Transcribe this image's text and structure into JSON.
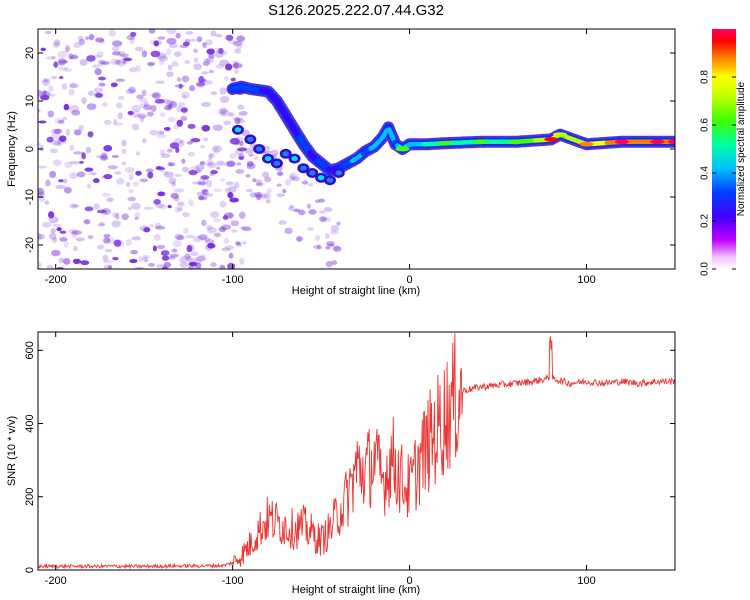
{
  "title": "S126.2025.222.07.44.G32",
  "chart_data": [
    {
      "type": "heatmap",
      "name": "spectrogram",
      "xlabel": "Height of straight line (km)",
      "ylabel": "Frequency (Hz)",
      "xlim": [
        -210,
        150
      ],
      "ylim": [
        -25,
        25
      ],
      "xticks": [
        -200,
        -100,
        0,
        100
      ],
      "yticks": [
        -20,
        -10,
        0,
        10,
        20
      ],
      "colorbar": {
        "label": "Normalized spectral amplitude",
        "range": [
          0,
          1
        ],
        "ticks": [
          0.0,
          0.2,
          0.4,
          0.6,
          0.8
        ]
      },
      "ridge": [
        {
          "x": -100,
          "f": 12.5,
          "amp": 0.35
        },
        {
          "x": -95,
          "f": 13.0,
          "amp": 0.4
        },
        {
          "x": -90,
          "f": 12.5,
          "amp": 0.35
        },
        {
          "x": -80,
          "f": 12.0,
          "amp": 0.3
        },
        {
          "x": -75,
          "f": 10.0,
          "amp": 0.25
        },
        {
          "x": -70,
          "f": 7.0,
          "amp": 0.3
        },
        {
          "x": -65,
          "f": 4.0,
          "amp": 0.3
        },
        {
          "x": -60,
          "f": 1.0,
          "amp": 0.35
        },
        {
          "x": -55,
          "f": -1.5,
          "amp": 0.3
        },
        {
          "x": -50,
          "f": -3.0,
          "amp": 0.35
        },
        {
          "x": -45,
          "f": -4.5,
          "amp": 0.3
        },
        {
          "x": -40,
          "f": -4.0,
          "amp": 0.3
        },
        {
          "x": -35,
          "f": -3.0,
          "amp": 0.4
        },
        {
          "x": -30,
          "f": -2.0,
          "amp": 0.45
        },
        {
          "x": -25,
          "f": -0.5,
          "amp": 0.4
        },
        {
          "x": -20,
          "f": 0.5,
          "amp": 0.45
        },
        {
          "x": -15,
          "f": 2.5,
          "amp": 0.5
        },
        {
          "x": -12,
          "f": 4.5,
          "amp": 0.45
        },
        {
          "x": -8,
          "f": 1.0,
          "amp": 0.4
        },
        {
          "x": -4,
          "f": 0.0,
          "amp": 0.6
        },
        {
          "x": 0,
          "f": 1.0,
          "amp": 0.45
        },
        {
          "x": 10,
          "f": 1.0,
          "amp": 0.55
        },
        {
          "x": 20,
          "f": 1.2,
          "amp": 0.6
        },
        {
          "x": 40,
          "f": 1.5,
          "amp": 0.6
        },
        {
          "x": 60,
          "f": 1.5,
          "amp": 0.6
        },
        {
          "x": 80,
          "f": 2.0,
          "amp": 0.85
        },
        {
          "x": 85,
          "f": 3.0,
          "amp": 0.7
        },
        {
          "x": 100,
          "f": 1.0,
          "amp": 0.8
        },
        {
          "x": 120,
          "f": 1.5,
          "amp": 0.95
        },
        {
          "x": 140,
          "f": 1.5,
          "amp": 0.9
        },
        {
          "x": 150,
          "f": 1.5,
          "amp": 0.9
        }
      ]
    },
    {
      "type": "line",
      "name": "snr",
      "xlabel": "Height of straight line (km)",
      "ylabel": "SNR (10 * v/v)",
      "xlim": [
        -210,
        150
      ],
      "ylim": [
        0,
        650
      ],
      "xticks": [
        -200,
        -100,
        0,
        100
      ],
      "yticks": [
        0,
        200,
        400,
        600
      ],
      "color": "#ee3333",
      "series": [
        {
          "name": "SNR",
          "x": [
            -210,
            -150,
            -105,
            -100,
            -95,
            -90,
            -85,
            -80,
            -75,
            -70,
            -65,
            -60,
            -55,
            -50,
            -45,
            -40,
            -35,
            -30,
            -25,
            -20,
            -15,
            -10,
            -5,
            0,
            5,
            10,
            15,
            20,
            25,
            30,
            40,
            50,
            60,
            70,
            80,
            90,
            100,
            110,
            120,
            130,
            140,
            150
          ],
          "y": [
            10,
            10,
            12,
            20,
            40,
            70,
            110,
            140,
            130,
            120,
            110,
            120,
            100,
            80,
            110,
            160,
            200,
            280,
            270,
            300,
            240,
            310,
            250,
            220,
            290,
            340,
            380,
            420,
            460,
            490,
            500,
            505,
            510,
            515,
            525,
            510,
            515,
            510,
            515,
            510,
            515,
            515
          ]
        }
      ]
    }
  ],
  "colors": {
    "ridge_scale": [
      "#ffffff",
      "#ff00ff",
      "#8000ff",
      "#0000ff",
      "#00ffff",
      "#00ff00",
      "#ffff00",
      "#ff8000",
      "#ff0000",
      "#ff0060"
    ],
    "scatter": "#7a2fe0",
    "line": "#ee3333"
  }
}
